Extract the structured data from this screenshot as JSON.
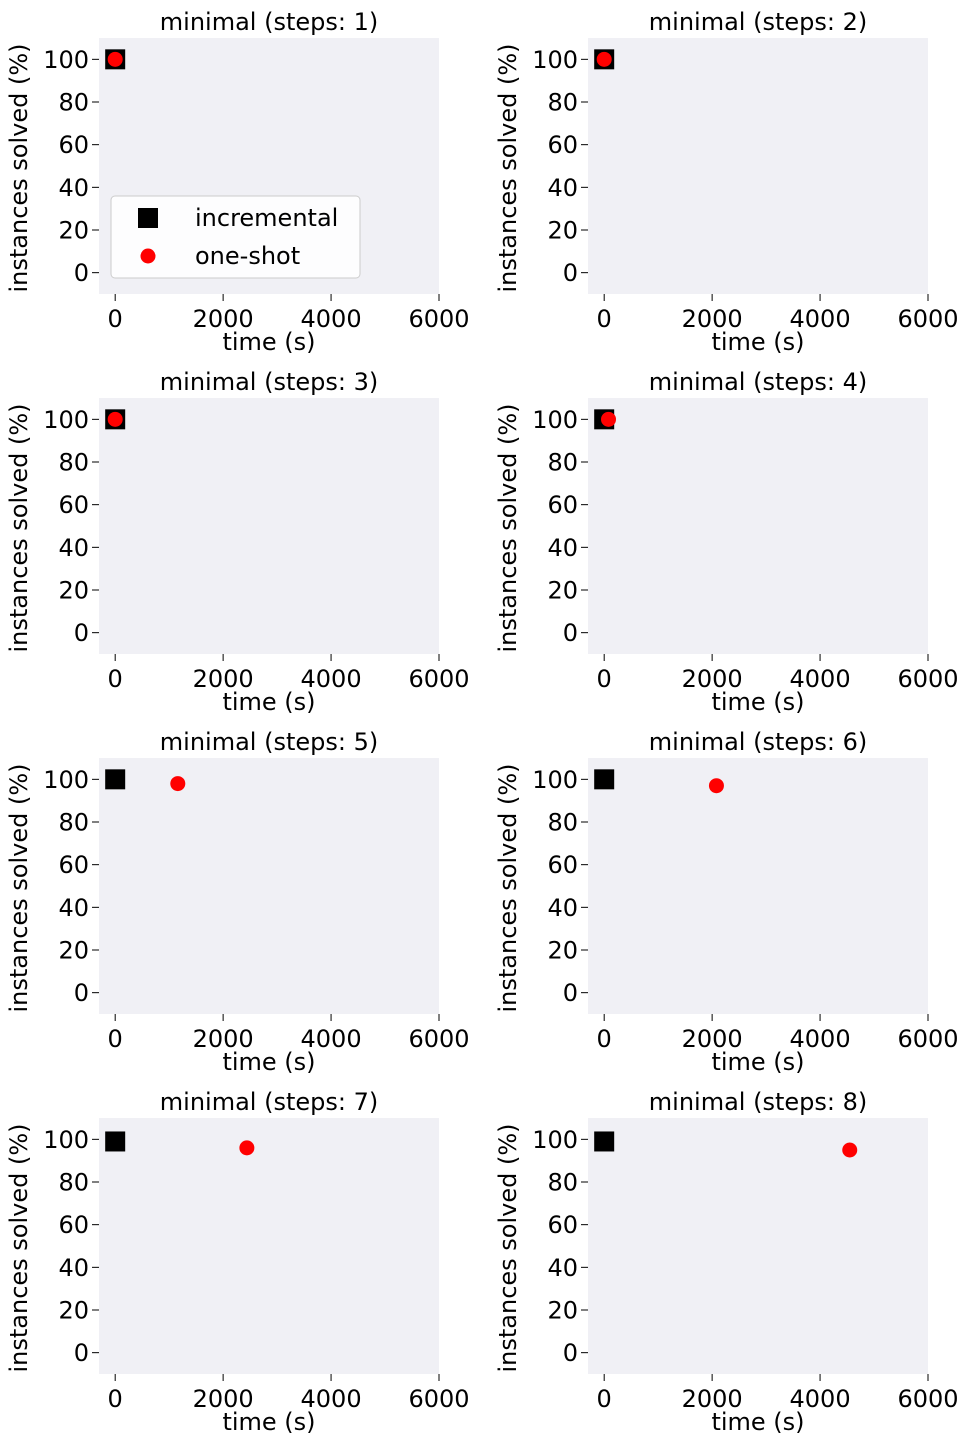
{
  "chart_data": [
    {
      "type": "scatter",
      "title": "minimal (steps: 1)",
      "xlabel": "time (s)",
      "ylabel": "instances solved (%)",
      "xlim": [
        -300,
        6000
      ],
      "ylim": [
        -10,
        110
      ],
      "xticks": [
        0,
        2000,
        4000,
        6000
      ],
      "yticks": [
        0,
        20,
        40,
        60,
        80,
        100
      ],
      "grid": false,
      "legend": {
        "shown": true,
        "placement": "lower-center"
      },
      "series": [
        {
          "name": "incremental",
          "marker": "square",
          "color": "#000000",
          "points": [
            [
              0,
              100
            ]
          ]
        },
        {
          "name": "one-shot",
          "marker": "circle",
          "color": "#ff0000",
          "points": [
            [
              0,
              100
            ]
          ]
        }
      ]
    },
    {
      "type": "scatter",
      "title": "minimal (steps: 2)",
      "xlabel": "time (s)",
      "ylabel": "instances solved (%)",
      "xlim": [
        -300,
        6000
      ],
      "ylim": [
        -10,
        110
      ],
      "xticks": [
        0,
        2000,
        4000,
        6000
      ],
      "yticks": [
        0,
        20,
        40,
        60,
        80,
        100
      ],
      "grid": false,
      "legend": {
        "shown": false
      },
      "series": [
        {
          "name": "incremental",
          "marker": "square",
          "color": "#000000",
          "points": [
            [
              0,
              100
            ]
          ]
        },
        {
          "name": "one-shot",
          "marker": "circle",
          "color": "#ff0000",
          "points": [
            [
              0,
              100
            ]
          ]
        }
      ]
    },
    {
      "type": "scatter",
      "title": "minimal (steps: 3)",
      "xlabel": "time (s)",
      "ylabel": "instances solved (%)",
      "xlim": [
        -300,
        6000
      ],
      "ylim": [
        -10,
        110
      ],
      "xticks": [
        0,
        2000,
        4000,
        6000
      ],
      "yticks": [
        0,
        20,
        40,
        60,
        80,
        100
      ],
      "grid": false,
      "legend": {
        "shown": false
      },
      "series": [
        {
          "name": "incremental",
          "marker": "square",
          "color": "#000000",
          "points": [
            [
              0,
              100
            ]
          ]
        },
        {
          "name": "one-shot",
          "marker": "circle",
          "color": "#ff0000",
          "points": [
            [
              0,
              100
            ]
          ]
        }
      ]
    },
    {
      "type": "scatter",
      "title": "minimal (steps: 4)",
      "xlabel": "time (s)",
      "ylabel": "instances solved (%)",
      "xlim": [
        -300,
        6000
      ],
      "ylim": [
        -10,
        110
      ],
      "xticks": [
        0,
        2000,
        4000,
        6000
      ],
      "yticks": [
        0,
        20,
        40,
        60,
        80,
        100
      ],
      "grid": false,
      "legend": {
        "shown": false
      },
      "series": [
        {
          "name": "incremental",
          "marker": "square",
          "color": "#000000",
          "points": [
            [
              0,
              100
            ]
          ]
        },
        {
          "name": "one-shot",
          "marker": "circle",
          "color": "#ff0000",
          "points": [
            [
              80,
              100
            ]
          ]
        }
      ]
    },
    {
      "type": "scatter",
      "title": "minimal (steps: 5)",
      "xlabel": "time (s)",
      "ylabel": "instances solved (%)",
      "xlim": [
        -300,
        6000
      ],
      "ylim": [
        -10,
        110
      ],
      "xticks": [
        0,
        2000,
        4000,
        6000
      ],
      "yticks": [
        0,
        20,
        40,
        60,
        80,
        100
      ],
      "grid": false,
      "legend": {
        "shown": false
      },
      "series": [
        {
          "name": "incremental",
          "marker": "square",
          "color": "#000000",
          "points": [
            [
              0,
              100
            ]
          ]
        },
        {
          "name": "one-shot",
          "marker": "circle",
          "color": "#ff0000",
          "points": [
            [
              1160,
              98
            ]
          ]
        }
      ]
    },
    {
      "type": "scatter",
      "title": "minimal (steps: 6)",
      "xlabel": "time (s)",
      "ylabel": "instances solved (%)",
      "xlim": [
        -300,
        6000
      ],
      "ylim": [
        -10,
        110
      ],
      "xticks": [
        0,
        2000,
        4000,
        6000
      ],
      "yticks": [
        0,
        20,
        40,
        60,
        80,
        100
      ],
      "grid": false,
      "legend": {
        "shown": false
      },
      "series": [
        {
          "name": "incremental",
          "marker": "square",
          "color": "#000000",
          "points": [
            [
              0,
              100
            ]
          ]
        },
        {
          "name": "one-shot",
          "marker": "circle",
          "color": "#ff0000",
          "points": [
            [
              2080,
              97
            ]
          ]
        }
      ]
    },
    {
      "type": "scatter",
      "title": "minimal (steps: 7)",
      "xlabel": "time (s)",
      "ylabel": "instances solved (%)",
      "xlim": [
        -300,
        6000
      ],
      "ylim": [
        -10,
        110
      ],
      "xticks": [
        0,
        2000,
        4000,
        6000
      ],
      "yticks": [
        0,
        20,
        40,
        60,
        80,
        100
      ],
      "grid": false,
      "legend": {
        "shown": false
      },
      "series": [
        {
          "name": "incremental",
          "marker": "square",
          "color": "#000000",
          "points": [
            [
              0,
              99
            ]
          ]
        },
        {
          "name": "one-shot",
          "marker": "circle",
          "color": "#ff0000",
          "points": [
            [
              2440,
              96
            ]
          ]
        }
      ]
    },
    {
      "type": "scatter",
      "title": "minimal (steps: 8)",
      "xlabel": "time (s)",
      "ylabel": "instances solved (%)",
      "xlim": [
        -300,
        6000
      ],
      "ylim": [
        -10,
        110
      ],
      "xticks": [
        0,
        2000,
        4000,
        6000
      ],
      "yticks": [
        0,
        20,
        40,
        60,
        80,
        100
      ],
      "grid": false,
      "legend": {
        "shown": false
      },
      "series": [
        {
          "name": "incremental",
          "marker": "square",
          "color": "#000000",
          "points": [
            [
              0,
              99
            ]
          ]
        },
        {
          "name": "one-shot",
          "marker": "circle",
          "color": "#ff0000",
          "points": [
            [
              4550,
              95
            ]
          ]
        }
      ]
    }
  ],
  "style": {
    "plot_background": "#f0f0f5",
    "incremental_color": "#000000",
    "one_shot_color": "#ff0000",
    "legend_background": "#ffffff"
  }
}
